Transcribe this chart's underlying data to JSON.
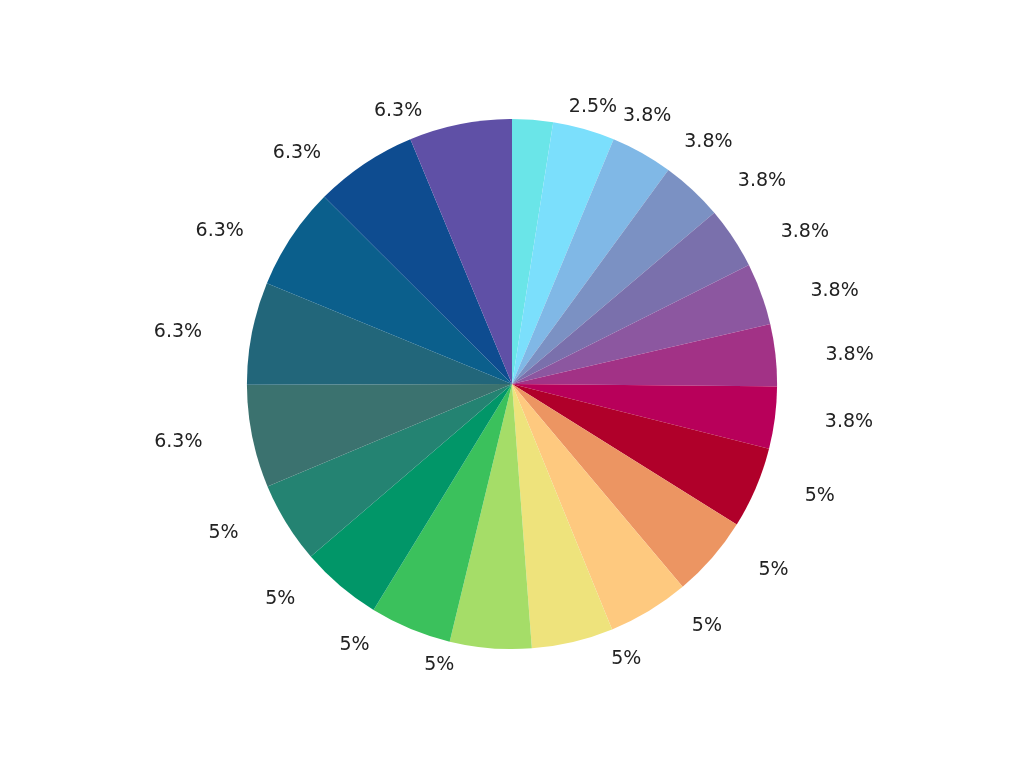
{
  "chart_data": {
    "type": "pie",
    "categories": [
      null,
      null,
      null,
      null,
      null,
      null,
      null,
      null,
      null,
      null,
      null,
      null,
      null,
      null,
      null,
      null,
      null,
      null,
      null,
      null,
      null
    ],
    "values": [
      2.5,
      3.8,
      3.8,
      3.8,
      3.8,
      3.8,
      3.8,
      3.8,
      5,
      5,
      5,
      5,
      5,
      5,
      5,
      5,
      6.3,
      6.3,
      6.3,
      6.3,
      6.3
    ],
    "value_labels": [
      "2.5%",
      "3.8%",
      "3.8%",
      "3.8%",
      "3.8%",
      "3.8%",
      "3.8%",
      "3.8%",
      "5%",
      "5%",
      "5%",
      "5%",
      "5%",
      "5%",
      "5%",
      "5%",
      "6.3%",
      "6.3%",
      "6.3%",
      "6.3%",
      "6.3%"
    ],
    "colors": [
      "#6ae5e8",
      "#7bdffc",
      "#80b8e6",
      "#7b91c3",
      "#7a70ac",
      "#8c57a0",
      "#a23286",
      "#b8005a",
      "#b0002a",
      "#ec9562",
      "#fec97f",
      "#eee37c",
      "#a5dd68",
      "#3bc15c",
      "#019668",
      "#248372",
      "#3b726f",
      "#22667a",
      "#0b5f8c",
      "#0e4c90",
      "#5f50a6"
    ]
  }
}
